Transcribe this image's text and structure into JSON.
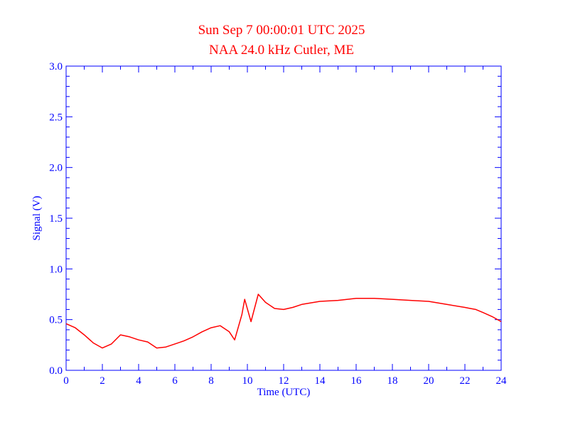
{
  "chart_data": {
    "type": "line",
    "title": "Sun Sep 7 00:00:01 UTC 2025",
    "subtitle": "NAA 24.0 kHz Cutler, ME",
    "xlabel": "Time (UTC)",
    "ylabel": "Signal (V)",
    "xlim": [
      0,
      24
    ],
    "ylim": [
      0.0,
      3.0
    ],
    "x_ticks": [
      "0",
      "2",
      "4",
      "6",
      "8",
      "10",
      "12",
      "14",
      "16",
      "18",
      "20",
      "22",
      "24"
    ],
    "y_ticks": [
      "0.0",
      "0.5",
      "1.0",
      "1.5",
      "2.0",
      "2.5",
      "3.0"
    ],
    "grid": false,
    "colors": {
      "axis": "#0000ff",
      "title": "#ff0000",
      "line": "#ff0000"
    },
    "series": [
      {
        "x": [
          0,
          0.5,
          1,
          1.5,
          2,
          2.5,
          3,
          3.5,
          4,
          4.5,
          5,
          5.5,
          6,
          6.5,
          7,
          7.5,
          8,
          8.5,
          9,
          9.3,
          9.7,
          9.85,
          10.2,
          10.6,
          11,
          11.5,
          12,
          12.5,
          13,
          14,
          15,
          16,
          17,
          18,
          19,
          20,
          21,
          22,
          22.3,
          22.6,
          23,
          23.5,
          24
        ],
        "y": [
          0.46,
          0.42,
          0.35,
          0.27,
          0.22,
          0.26,
          0.35,
          0.33,
          0.3,
          0.28,
          0.22,
          0.23,
          0.26,
          0.29,
          0.33,
          0.38,
          0.42,
          0.44,
          0.38,
          0.3,
          0.55,
          0.7,
          0.48,
          0.75,
          0.67,
          0.61,
          0.6,
          0.62,
          0.65,
          0.68,
          0.69,
          0.71,
          0.71,
          0.7,
          0.69,
          0.68,
          0.65,
          0.62,
          0.61,
          0.6,
          0.57,
          0.53,
          0.48
        ]
      }
    ]
  }
}
